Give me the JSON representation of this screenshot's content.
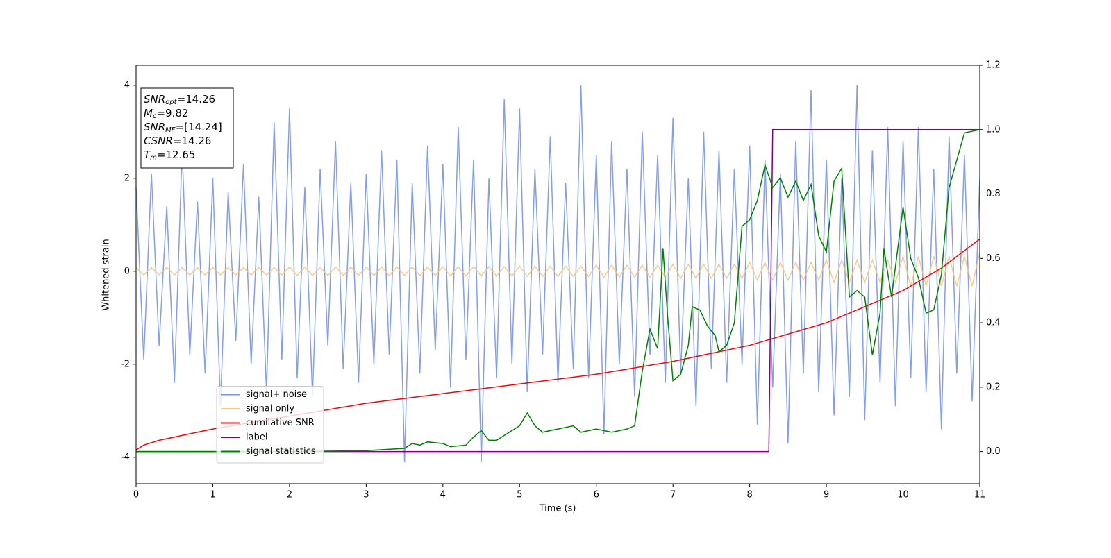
{
  "chart_data": {
    "type": "line",
    "xlabel": "Time (s)",
    "ylabel": "Whitened strain",
    "annotations": [
      {
        "main": "SNR",
        "sub": "opt",
        "rest": "=14.26"
      },
      {
        "main": "M",
        "sub": "c",
        "rest": "=9.82"
      },
      {
        "main": "SNR",
        "sub": "MF",
        "rest": "=[14.24]"
      },
      {
        "main": "CSNR",
        "sub": "",
        "rest": "=14.26"
      },
      {
        "main": "T",
        "sub": "m",
        "rest": "=12.65"
      }
    ],
    "xlim": [
      0,
      11
    ],
    "xticks": [
      0,
      1,
      2,
      3,
      4,
      5,
      6,
      7,
      8,
      9,
      10,
      11
    ],
    "ylim": [
      -4.57,
      4.43
    ],
    "yticks": [
      -4,
      -2,
      0,
      2,
      4
    ],
    "y2lim": [
      -0.1,
      1.2
    ],
    "y2ticks": [
      {
        "value": 0,
        "label": "0.0"
      },
      0.2,
      0.4,
      0.6,
      0.8,
      {
        "value": 1,
        "label": "1.0"
      },
      1.2
    ],
    "legend": "lower left",
    "x": [
      0,
      0.1,
      0.2,
      0.3,
      0.4,
      0.5,
      0.6,
      0.7,
      0.8,
      0.9,
      1,
      1.1,
      1.2,
      1.3,
      1.4,
      1.5,
      1.6,
      1.7,
      1.8,
      1.9,
      2,
      2.1,
      2.2,
      2.3,
      2.4,
      2.5,
      2.6,
      2.7,
      2.8,
      2.9,
      3,
      3.1,
      3.2,
      3.3,
      3.4,
      3.5,
      3.6,
      3.7,
      3.8,
      3.9,
      4,
      4.1,
      4.2,
      4.3,
      4.4,
      4.5,
      4.6,
      4.7,
      4.8,
      4.9,
      5,
      5.1,
      5.2,
      5.3,
      5.4,
      5.5,
      5.6,
      5.7,
      5.8,
      5.9,
      6,
      6.1,
      6.2,
      6.3,
      6.4,
      6.5,
      6.6,
      6.7,
      6.8,
      6.9,
      7,
      7.1,
      7.2,
      7.3,
      7.4,
      7.5,
      7.6,
      7.7,
      7.8,
      7.9,
      8,
      8.1,
      8.2,
      8.3,
      8.4,
      8.5,
      8.6,
      8.7,
      8.8,
      8.9,
      9,
      9.1,
      9.2,
      9.3,
      9.4,
      9.5,
      9.6,
      9.7,
      9.8,
      9.9,
      10,
      10.1,
      10.2,
      10.3,
      10.4,
      10.5,
      10.6,
      10.7,
      10.8,
      10.9,
      11
    ],
    "series": [
      {
        "name": "signal+ noise",
        "color": "#7893e8",
        "values": [
          1.8,
          -1.9,
          2.1,
          -1.6,
          1.4,
          -2.4,
          2.6,
          -1.8,
          1.5,
          -2.2,
          2.0,
          -2.9,
          1.7,
          -1.5,
          2.3,
          -2.0,
          1.6,
          -2.6,
          3.2,
          -1.9,
          3.5,
          -2.3,
          1.8,
          -2.7,
          2.2,
          -1.6,
          2.8,
          -2.1,
          1.9,
          -2.4,
          2.1,
          -2.0,
          2.6,
          -1.8,
          2.4,
          -4.1,
          1.9,
          -2.2,
          2.7,
          -1.7,
          2.3,
          -2.5,
          3.1,
          -1.9,
          2.4,
          -4.1,
          2.0,
          -2.3,
          3.7,
          -2.0,
          3.5,
          -2.6,
          2.2,
          -1.8,
          2.9,
          -2.4,
          1.9,
          -2.1,
          4.0,
          -2.3,
          2.5,
          -3.5,
          2.8,
          -2.0,
          2.2,
          -2.7,
          3.0,
          -1.8,
          2.5,
          -2.4,
          3.3,
          -2.2,
          2.0,
          -2.9,
          3.0,
          -2.1,
          2.6,
          -2.4,
          2.2,
          -2.0,
          2.7,
          -3.3,
          2.4,
          -2.5,
          2.1,
          -3.7,
          2.8,
          -2.2,
          3.9,
          -2.6,
          2.4,
          -3.1,
          2.0,
          -2.7,
          4.0,
          -3.2,
          2.6,
          -2.4,
          3.1,
          -2.9,
          2.8,
          -2.3,
          3.1,
          -2.6,
          2.2,
          -3.4,
          2.9,
          -2.2,
          2.5,
          -2.8,
          2.0
        ]
      },
      {
        "name": "signal only",
        "color": "#f5c77e",
        "values": [
          0.08,
          -0.08,
          0.08,
          -0.08,
          0.08,
          -0.08,
          0.08,
          -0.08,
          0.08,
          -0.08,
          0.08,
          -0.08,
          0.08,
          -0.08,
          0.08,
          -0.08,
          0.08,
          -0.08,
          0.08,
          -0.08,
          0.09,
          -0.09,
          0.09,
          -0.09,
          0.09,
          -0.09,
          0.09,
          -0.09,
          0.09,
          -0.09,
          0.09,
          -0.09,
          0.09,
          -0.09,
          0.09,
          -0.09,
          0.09,
          -0.09,
          0.09,
          -0.09,
          0.1,
          -0.1,
          0.1,
          -0.1,
          0.1,
          -0.1,
          0.1,
          -0.1,
          0.1,
          -0.1,
          0.11,
          -0.11,
          0.11,
          -0.11,
          0.11,
          -0.11,
          0.11,
          -0.11,
          0.11,
          -0.11,
          0.13,
          -0.13,
          0.13,
          -0.13,
          0.13,
          -0.13,
          0.13,
          -0.13,
          0.13,
          -0.13,
          0.15,
          -0.15,
          0.15,
          -0.15,
          0.15,
          -0.15,
          0.15,
          -0.15,
          0.15,
          -0.15,
          0.19,
          -0.19,
          0.19,
          -0.19,
          0.19,
          -0.19,
          0.19,
          -0.19,
          0.19,
          -0.19,
          0.24,
          -0.24,
          0.24,
          -0.24,
          0.24,
          -0.24,
          0.24,
          -0.24,
          0.24,
          -0.24,
          0.32,
          -0.32,
          0.32,
          -0.32,
          0.32,
          -0.32,
          0.32,
          -0.32,
          0.32,
          -0.32,
          0.4
        ]
      },
      {
        "name": "cumilative SNR",
        "color": "#ff0000",
        "axis": "y2",
        "x": [
          0,
          0.1,
          0.3,
          0.6,
          1,
          2,
          3,
          4,
          5,
          6,
          7,
          8,
          9,
          10,
          10.5,
          11
        ],
        "values": [
          0.005,
          0.02,
          0.035,
          0.05,
          0.07,
          0.11,
          0.15,
          0.18,
          0.21,
          0.24,
          0.28,
          0.33,
          0.4,
          0.5,
          0.57,
          0.66
        ]
      },
      {
        "name": "label",
        "color": "#800080",
        "axis": "y2",
        "x": [
          0,
          8.25,
          8.3,
          11
        ],
        "values": [
          0,
          0,
          1,
          1
        ]
      },
      {
        "name": "signal statistics",
        "color": "#008000",
        "axis": "y2",
        "x": [
          0,
          2,
          3,
          3.5,
          3.6,
          3.7,
          3.8,
          4.0,
          4.1,
          4.3,
          4.4,
          4.5,
          4.6,
          4.7,
          4.8,
          5,
          5.1,
          5.2,
          5.3,
          5.5,
          5.7,
          5.8,
          6,
          6.2,
          6.4,
          6.5,
          6.6,
          6.7,
          6.8,
          6.87,
          6.93,
          7,
          7.1,
          7.2,
          7.25,
          7.35,
          7.45,
          7.55,
          7.6,
          7.7,
          7.8,
          7.9,
          8.0,
          8.1,
          8.2,
          8.3,
          8.4,
          8.5,
          8.6,
          8.7,
          8.8,
          8.9,
          9.0,
          9.1,
          9.2,
          9.3,
          9.4,
          9.5,
          9.6,
          9.7,
          9.75,
          9.85,
          10.0,
          10.1,
          10.2,
          10.3,
          10.4,
          10.5,
          10.6,
          10.8,
          11
        ],
        "values": [
          0,
          0,
          0.003,
          0.01,
          0.025,
          0.02,
          0.03,
          0.025,
          0.015,
          0.02,
          0.045,
          0.065,
          0.035,
          0.035,
          0.05,
          0.08,
          0.12,
          0.08,
          0.06,
          0.07,
          0.08,
          0.06,
          0.07,
          0.06,
          0.07,
          0.08,
          0.25,
          0.38,
          0.32,
          0.63,
          0.42,
          0.22,
          0.24,
          0.33,
          0.45,
          0.44,
          0.39,
          0.36,
          0.31,
          0.33,
          0.4,
          0.7,
          0.72,
          0.78,
          0.89,
          0.82,
          0.85,
          0.79,
          0.84,
          0.78,
          0.83,
          0.67,
          0.62,
          0.84,
          0.88,
          0.48,
          0.5,
          0.48,
          0.3,
          0.43,
          0.63,
          0.48,
          0.76,
          0.6,
          0.54,
          0.43,
          0.44,
          0.55,
          0.82,
          0.99,
          1.0
        ]
      }
    ]
  }
}
